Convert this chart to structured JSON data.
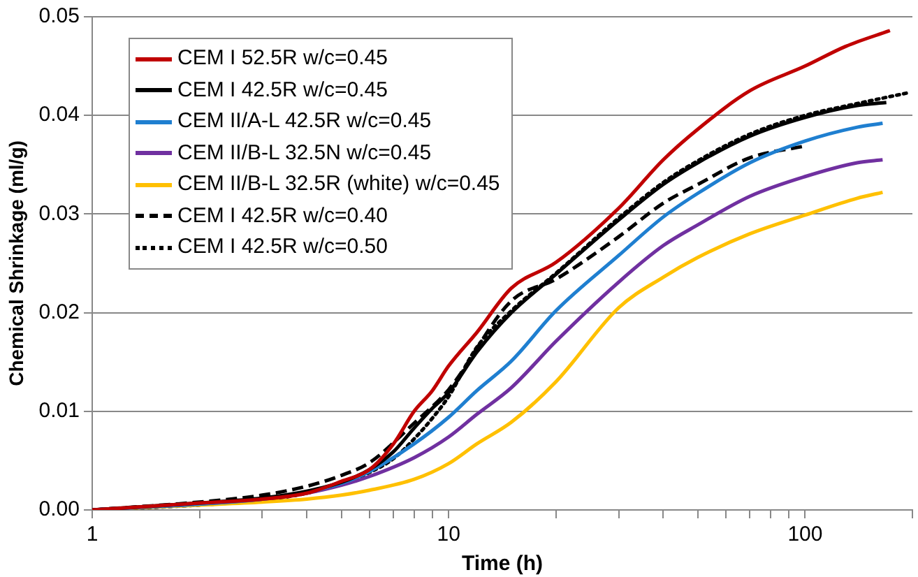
{
  "chart_data": {
    "type": "line",
    "xlabel": "Time (h)",
    "ylabel": "Chemical Shrinkage (ml/g)",
    "log": "x",
    "xlim": [
      1,
      200
    ],
    "ylim": [
      0,
      0.05
    ],
    "xticks": [
      1,
      {
        "value": 2,
        "label": null
      },
      {
        "value": 3,
        "label": null
      },
      {
        "value": 4,
        "label": null
      },
      {
        "value": 5,
        "label": null
      },
      {
        "value": 6,
        "label": null
      },
      {
        "value": 7,
        "label": null
      },
      {
        "value": 8,
        "label": null
      },
      {
        "value": 9,
        "label": null
      },
      10,
      {
        "value": 20,
        "label": null
      },
      {
        "value": 30,
        "label": null
      },
      {
        "value": 40,
        "label": null
      },
      {
        "value": 50,
        "label": null
      },
      {
        "value": 60,
        "label": null
      },
      {
        "value": 70,
        "label": null
      },
      {
        "value": 80,
        "label": null
      },
      {
        "value": 90,
        "label": null
      },
      100,
      {
        "value": 200,
        "label": null
      }
    ],
    "yticks": [
      {
        "value": 0,
        "label": "0.00"
      },
      0.01,
      0.02,
      0.03,
      0.04,
      0.05
    ],
    "grid": "y",
    "legend": "top left",
    "marker": "none",
    "series": [
      {
        "name": "CEM I 52.5R w/c=0.45",
        "color": "#c00000",
        "line_style": "solid",
        "x": [
          1,
          2,
          3,
          4,
          5,
          6,
          7,
          8,
          9,
          10,
          12,
          15,
          20,
          30,
          40,
          50,
          70,
          100,
          130,
          173
        ],
        "values": [
          0,
          0.0007,
          0.0011,
          0.0017,
          0.0029,
          0.0041,
          0.0067,
          0.01,
          0.0121,
          0.0146,
          0.018,
          0.0225,
          0.0251,
          0.0306,
          0.0355,
          0.0386,
          0.0425,
          0.045,
          0.047,
          0.0486
        ]
      },
      {
        "name": "CEM I 42.5R w/c=0.45",
        "color": "#000000",
        "line_style": "solid",
        "x": [
          1,
          2,
          3,
          4,
          5,
          6,
          7,
          8,
          9,
          10,
          12,
          15,
          20,
          30,
          40,
          50,
          70,
          100,
          140,
          169
        ],
        "values": [
          0,
          0.0007,
          0.0012,
          0.0019,
          0.0028,
          0.0041,
          0.0059,
          0.0083,
          0.0103,
          0.0119,
          0.016,
          0.02,
          0.0239,
          0.0294,
          0.033,
          0.0352,
          0.0379,
          0.0398,
          0.041,
          0.0413
        ]
      },
      {
        "name": "CEM II/A-L 42.5R w/c=0.45",
        "color": "#1f7fd0",
        "line_style": "solid",
        "x": [
          1,
          2,
          3,
          4,
          5,
          6,
          8,
          10,
          12,
          15,
          20,
          30,
          40,
          50,
          70,
          100,
          140,
          165
        ],
        "values": [
          0,
          0.0006,
          0.0011,
          0.0018,
          0.0027,
          0.0039,
          0.0067,
          0.0094,
          0.0121,
          0.0151,
          0.0202,
          0.0258,
          0.0297,
          0.0321,
          0.0352,
          0.0374,
          0.0388,
          0.0392
        ]
      },
      {
        "name": "CEM II/B-L 32.5N w/c=0.45",
        "color": "#7030a0",
        "line_style": "solid",
        "x": [
          1,
          2,
          3,
          4,
          5,
          6,
          8,
          10,
          12,
          15,
          20,
          30,
          40,
          50,
          70,
          100,
          140,
          165
        ],
        "values": [
          0,
          0.0006,
          0.0011,
          0.0017,
          0.0025,
          0.0034,
          0.0053,
          0.0074,
          0.0097,
          0.0124,
          0.0171,
          0.0231,
          0.0268,
          0.0289,
          0.0318,
          0.0338,
          0.0352,
          0.0355
        ]
      },
      {
        "name": "CEM II/B-L 32.5R (white) w/c=0.45",
        "color": "#ffc000",
        "line_style": "solid",
        "x": [
          1,
          2,
          3,
          4,
          5,
          6,
          8,
          10,
          12,
          15,
          20,
          30,
          40,
          50,
          70,
          100,
          140,
          165
        ],
        "values": [
          0,
          0.0005,
          0.0008,
          0.0011,
          0.0015,
          0.002,
          0.0031,
          0.0047,
          0.0067,
          0.0089,
          0.013,
          0.0205,
          0.0236,
          0.0256,
          0.028,
          0.0299,
          0.0316,
          0.0322
        ]
      },
      {
        "name": "CEM I 42.5R w/c=0.40",
        "color": "#000000",
        "line_style": "dashed",
        "x": [
          1,
          2,
          3,
          4,
          5,
          6,
          8,
          10,
          15,
          20,
          30,
          40,
          50,
          70,
          100
        ],
        "values": [
          0,
          0.0008,
          0.0015,
          0.0024,
          0.0035,
          0.0048,
          0.0088,
          0.0122,
          0.0212,
          0.0234,
          0.0277,
          0.0311,
          0.033,
          0.0357,
          0.0369
        ]
      },
      {
        "name": "CEM I 42.5R w/c=0.50",
        "color": "#000000",
        "line_style": "dotted",
        "x": [
          1,
          2,
          3,
          4,
          5,
          6,
          7,
          8,
          9,
          10,
          12,
          15,
          20,
          30,
          40,
          50,
          70,
          100,
          140,
          195
        ],
        "values": [
          0,
          0.0005,
          0.001,
          0.0017,
          0.0027,
          0.0038,
          0.0052,
          0.0072,
          0.0093,
          0.0115,
          0.0165,
          0.0202,
          0.024,
          0.0296,
          0.0332,
          0.0354,
          0.0381,
          0.04,
          0.0412,
          0.0423
        ]
      }
    ]
  }
}
